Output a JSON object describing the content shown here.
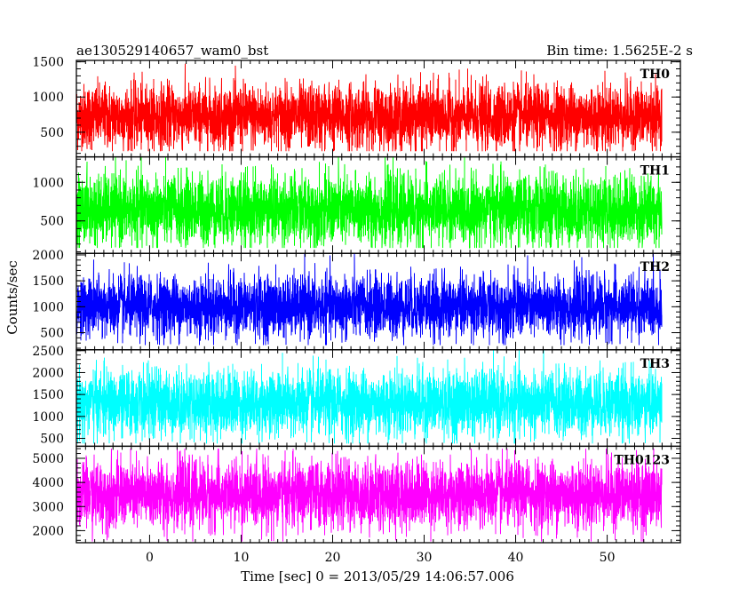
{
  "header": {
    "left_title": "ae130529140657_wam0_bst",
    "right_title": "Bin time: 1.5625E-2 s"
  },
  "chart_data": {
    "type": "line",
    "title": "ae130529140657_wam0_bst",
    "subtitle": "Bin time: 1.5625E-2 s",
    "xlabel": "Time [sec] 0 = 2013/05/29 14:06:57.006",
    "ylabel": "Counts/sec",
    "xlim": [
      -8.0,
      58.0
    ],
    "x_ticks": [
      0,
      10,
      20,
      30,
      40,
      50
    ],
    "x_range_data": [
      -8.0,
      56.0
    ],
    "grid": false,
    "panels": [
      {
        "name": "TH0",
        "color": "#ff0000",
        "ylim": [
          150,
          1520
        ],
        "y_ticks": [
          500,
          1000,
          1500
        ],
        "mean": 720,
        "noise_sd": 230,
        "min": 230,
        "max": 1520
      },
      {
        "name": "TH1",
        "color": "#00ff00",
        "ylim": [
          80,
          1330
        ],
        "y_ticks": [
          500,
          1000
        ],
        "mean": 640,
        "noise_sd": 230,
        "min": 150,
        "max": 1330
      },
      {
        "name": "TH2",
        "color": "#0000ff",
        "ylim": [
          170,
          2030
        ],
        "y_ticks": [
          500,
          1000,
          1500,
          2000
        ],
        "mean": 1000,
        "noise_sd": 300,
        "min": 260,
        "max": 2030
      },
      {
        "name": "TH3",
        "color": "#00ffff",
        "ylim": [
          320,
          2520
        ],
        "y_ticks": [
          500,
          1000,
          1500,
          2000,
          2500
        ],
        "mean": 1300,
        "noise_sd": 380,
        "min": 380,
        "max": 2520
      },
      {
        "name": "TH0123",
        "color": "#ff00ff",
        "ylim": [
          1500,
          5500
        ],
        "y_ticks": [
          2000,
          3000,
          4000,
          5000
        ],
        "mean": 3500,
        "noise_sd": 700,
        "min": 1550,
        "max": 5400
      }
    ]
  }
}
